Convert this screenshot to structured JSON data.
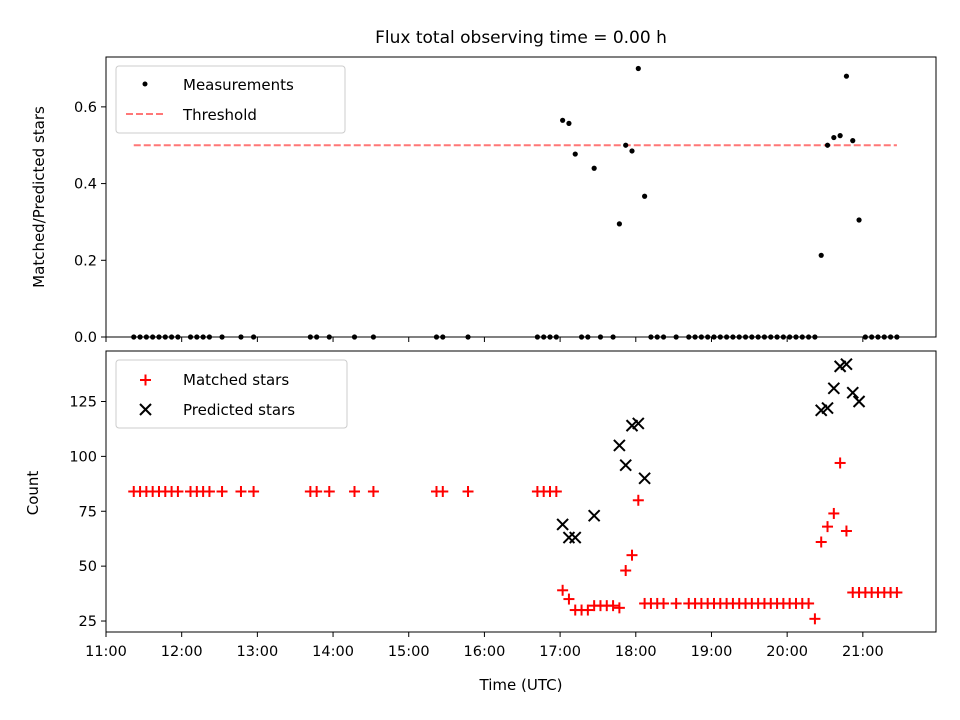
{
  "chart_data": [
    {
      "type": "scatter",
      "title": "Flux total observing time = 0.00 h",
      "xlabel": "",
      "ylabel": "Matched/Predicted stars",
      "xlim": [
        "11:00",
        "21:58"
      ],
      "ylim": [
        0,
        0.73
      ],
      "yticks": [
        "0.0",
        "0.2",
        "0.4",
        "0.6"
      ],
      "legend_position": "top-left",
      "series": [
        {
          "name": "Measurements",
          "color": "#000000",
          "marker": "dot",
          "x": [
            "11:22",
            "11:27",
            "11:32",
            "11:37",
            "11:42",
            "11:47",
            "11:52",
            "11:57",
            "12:07",
            "12:12",
            "12:17",
            "12:22",
            "12:32",
            "12:47",
            "12:57",
            "13:42",
            "13:47",
            "13:57",
            "14:17",
            "14:32",
            "15:22",
            "15:27",
            "15:47",
            "16:42",
            "16:47",
            "16:52",
            "16:57",
            "17:02",
            "17:07",
            "17:12",
            "17:17",
            "17:22",
            "17:27",
            "17:32",
            "17:42",
            "17:47",
            "17:52",
            "17:57",
            "18:02",
            "18:07",
            "18:12",
            "18:17",
            "18:22",
            "18:32",
            "18:42",
            "18:47",
            "18:52",
            "18:57",
            "19:02",
            "19:07",
            "19:12",
            "19:17",
            "19:22",
            "19:27",
            "19:32",
            "19:37",
            "19:42",
            "19:47",
            "19:52",
            "19:57",
            "20:02",
            "20:07",
            "20:12",
            "20:17",
            "20:22",
            "20:27",
            "20:32",
            "20:37",
            "20:42",
            "20:47",
            "20:52",
            "20:57",
            "21:02",
            "21:07",
            "21:12",
            "21:17",
            "21:22",
            "21:27"
          ],
          "y": [
            0,
            0,
            0,
            0,
            0,
            0,
            0,
            0,
            0,
            0,
            0,
            0,
            0,
            0,
            0,
            0,
            0,
            0,
            0,
            0,
            0,
            0,
            0,
            0,
            0,
            0,
            0,
            0.565,
            0.557,
            0.477,
            0,
            0,
            0.44,
            0,
            0,
            0.295,
            0.5,
            0.485,
            0.7,
            0.367,
            0,
            0,
            0,
            0,
            0,
            0,
            0,
            0,
            0,
            0,
            0,
            0,
            0,
            0,
            0,
            0,
            0,
            0,
            0,
            0,
            0,
            0,
            0,
            0,
            0,
            0.213,
            0.5,
            0.52,
            0.525,
            0.68,
            0.512,
            0.305,
            0,
            0,
            0,
            0,
            0,
            0
          ]
        },
        {
          "name": "Threshold",
          "color": "#ff7777",
          "style": "dashed",
          "x": [
            "11:22",
            "21:27"
          ],
          "y": [
            0.5,
            0.5
          ]
        }
      ]
    },
    {
      "type": "scatter",
      "xlabel": "Time (UTC)",
      "ylabel": "Count",
      "xlim": [
        "11:00",
        "21:58"
      ],
      "ylim": [
        20,
        148
      ],
      "yticks": [
        "25",
        "50",
        "75",
        "100",
        "125"
      ],
      "xticks": [
        "11:00",
        "12:00",
        "13:00",
        "14:00",
        "15:00",
        "16:00",
        "17:00",
        "18:00",
        "19:00",
        "20:00",
        "21:00"
      ],
      "legend_position": "top-left",
      "series": [
        {
          "name": "Matched stars",
          "color": "#ff0000",
          "marker": "plus",
          "x": [
            "11:22",
            "11:27",
            "11:32",
            "11:37",
            "11:42",
            "11:47",
            "11:52",
            "11:57",
            "12:07",
            "12:12",
            "12:17",
            "12:22",
            "12:32",
            "12:47",
            "12:57",
            "13:42",
            "13:47",
            "13:57",
            "14:17",
            "14:32",
            "15:22",
            "15:27",
            "15:47",
            "16:42",
            "16:47",
            "16:52",
            "16:57",
            "17:02",
            "17:07",
            "17:12",
            "17:17",
            "17:22",
            "17:27",
            "17:32",
            "17:37",
            "17:42",
            "17:47",
            "17:52",
            "17:57",
            "18:02",
            "18:07",
            "18:12",
            "18:17",
            "18:22",
            "18:32",
            "18:42",
            "18:47",
            "18:52",
            "18:57",
            "19:02",
            "19:07",
            "19:12",
            "19:17",
            "19:22",
            "19:27",
            "19:32",
            "19:37",
            "19:42",
            "19:47",
            "19:52",
            "19:57",
            "20:02",
            "20:07",
            "20:12",
            "20:17",
            "20:22",
            "20:27",
            "20:32",
            "20:37",
            "20:42",
            "20:47",
            "20:52",
            "20:57",
            "21:02",
            "21:07",
            "21:12",
            "21:17",
            "21:22",
            "21:27"
          ],
          "y": [
            84,
            84,
            84,
            84,
            84,
            84,
            84,
            84,
            84,
            84,
            84,
            84,
            84,
            84,
            84,
            84,
            84,
            84,
            84,
            84,
            84,
            84,
            84,
            84,
            84,
            84,
            84,
            39,
            35,
            30,
            30,
            30,
            32,
            32,
            32,
            32,
            31,
            48,
            55,
            80,
            33,
            33,
            33,
            33,
            33,
            33,
            33,
            33,
            33,
            33,
            33,
            33,
            33,
            33,
            33,
            33,
            33,
            33,
            33,
            33,
            33,
            33,
            33,
            33,
            33,
            26,
            61,
            68,
            74,
            97,
            66,
            38,
            38,
            38,
            38,
            38,
            38,
            38,
            38
          ]
        },
        {
          "name": "Predicted stars",
          "color": "#000000",
          "marker": "x",
          "x": [
            "17:02",
            "17:07",
            "17:12",
            "17:27",
            "17:47",
            "17:52",
            "17:57",
            "18:02",
            "18:07",
            "20:27",
            "20:32",
            "20:37",
            "20:42",
            "20:47",
            "20:52",
            "20:57"
          ],
          "y": [
            69,
            63,
            63,
            73,
            105,
            96,
            114,
            115,
            90,
            121,
            122,
            131,
            141,
            142,
            129,
            125
          ]
        }
      ]
    }
  ]
}
